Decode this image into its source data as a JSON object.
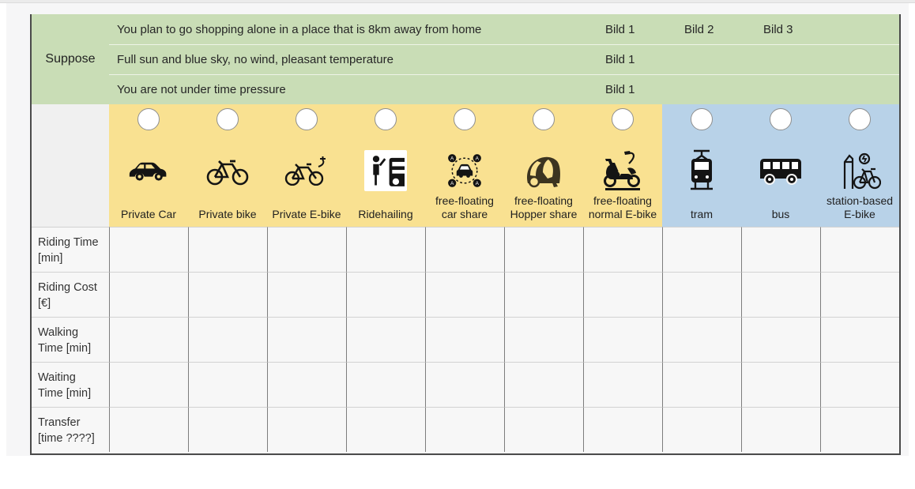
{
  "colors": {
    "scenario_green": "#c9ddb6",
    "private_yellow": "#f9e191",
    "transit_blue": "#b8d2e8",
    "cell_bg": "#f7f7f7",
    "outer_border": "#4a4a4a",
    "column_line": "#7d7d7d",
    "row_line": "#d2d2d2"
  },
  "header": {
    "suppose_label": "Suppose",
    "scenarios": [
      {
        "text": "You plan to go shopping alone in a place that is 8km away from home",
        "bild_links": [
          "Bild 1",
          "Bild 2",
          "Bild 3"
        ]
      },
      {
        "text": "Full sun and blue sky, no wind, pleasant temperature",
        "bild_links": [
          "Bild 1"
        ]
      },
      {
        "text": "You are not under time pressure",
        "bild_links": [
          "Bild 1"
        ]
      }
    ]
  },
  "modes": [
    {
      "label_lines": [
        "Private Car"
      ],
      "icon": "private-car-icon",
      "group": "private",
      "selected": false
    },
    {
      "label_lines": [
        "Private bike"
      ],
      "icon": "private-bike-icon",
      "group": "private",
      "selected": false
    },
    {
      "label_lines": [
        "Private E-bike"
      ],
      "icon": "private-ebike-icon",
      "group": "private",
      "selected": false
    },
    {
      "label_lines": [
        "Ridehailing"
      ],
      "icon": "ridehailing-icon",
      "group": "private",
      "selected": false
    },
    {
      "label_lines": [
        "free-floating",
        "car share"
      ],
      "icon": "ff-carshare-icon",
      "group": "sharing",
      "selected": false
    },
    {
      "label_lines": [
        "free-floating",
        "Hopper share"
      ],
      "icon": "ff-hopper-icon",
      "group": "sharing",
      "selected": false
    },
    {
      "label_lines": [
        "free-floating",
        "normal E-bike"
      ],
      "icon": "ff-ebike-icon",
      "group": "sharing",
      "selected": false
    },
    {
      "label_lines": [
        "tram"
      ],
      "icon": "tram-icon",
      "group": "transit",
      "selected": false
    },
    {
      "label_lines": [
        "bus"
      ],
      "icon": "bus-icon",
      "group": "transit",
      "selected": false
    },
    {
      "label_lines": [
        "station-based",
        "E-bike"
      ],
      "icon": "station-ebike-icon",
      "group": "transit",
      "selected": false
    }
  ],
  "attributes": [
    {
      "line1": "Riding Time",
      "line2": "[min]"
    },
    {
      "line1": "Riding Cost",
      "line2": "[€]"
    },
    {
      "line1": "Walking",
      "line2": "Time [min]"
    },
    {
      "line1": "Waiting",
      "line2": "Time [min]"
    },
    {
      "line1": "Transfer",
      "line2": "[time ????]"
    }
  ]
}
